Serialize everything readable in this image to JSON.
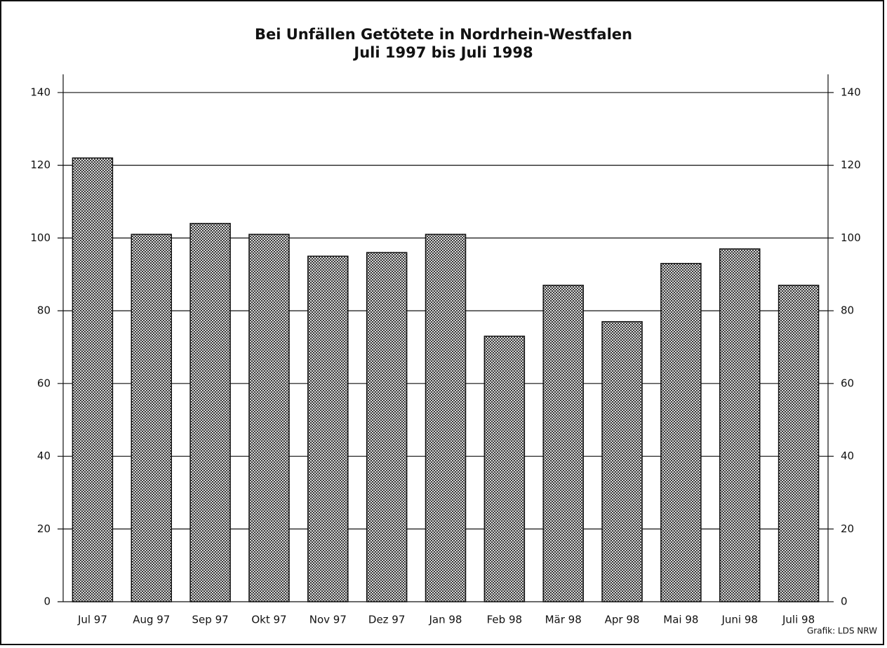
{
  "chart_data": {
    "type": "bar",
    "title": "Bei Unfällen Getötete in Nordrhein-Westfalen",
    "subtitle": "Juli 1997 bis Juli 1998",
    "source": "Grafik: LDS NRW",
    "categories": [
      "Jul 97",
      "Aug 97",
      "Sep 97",
      "Okt 97",
      "Nov 97",
      "Dez 97",
      "Jan 98",
      "Feb 98",
      "Mär 98",
      "Apr 98",
      "Mai 98",
      "Juni 98",
      "Juli 98"
    ],
    "values": [
      122,
      101,
      104,
      101,
      95,
      96,
      101,
      73,
      87,
      77,
      93,
      97,
      87
    ],
    "color": "#3a3a3a",
    "ylim": [
      0,
      145
    ],
    "yticks": [
      0,
      20,
      40,
      60,
      80,
      100,
      120,
      140
    ],
    "y2lim": [
      0,
      145
    ],
    "y2ticks": [
      0,
      20,
      40,
      60,
      80,
      100,
      120,
      140
    ],
    "grid": true
  }
}
